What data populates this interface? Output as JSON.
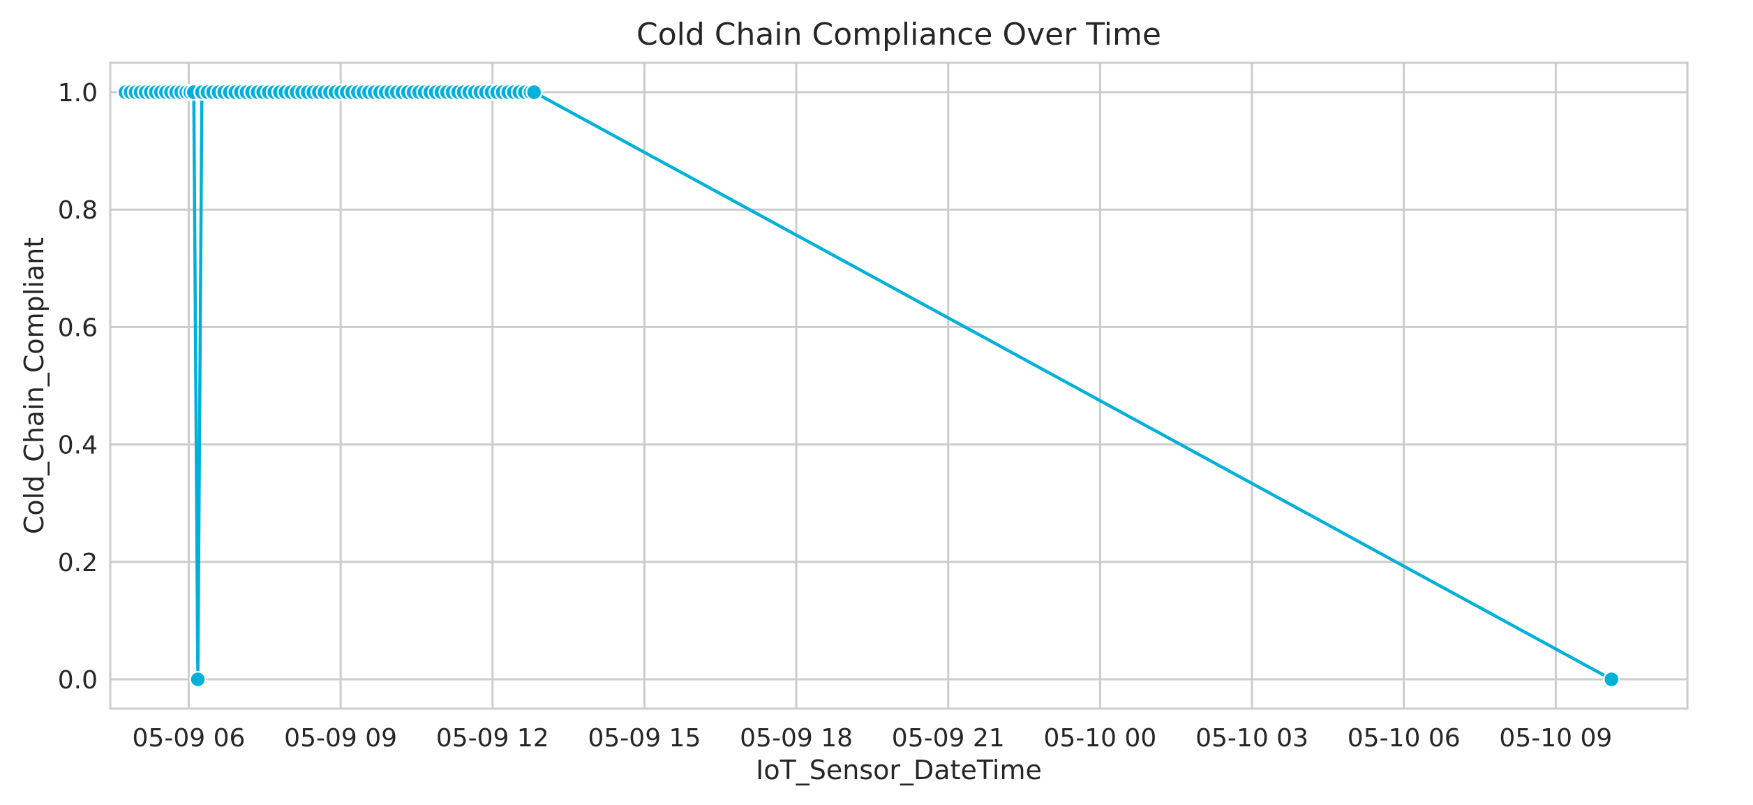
{
  "chart_data": {
    "type": "line",
    "title": "Cold Chain Compliance Over Time",
    "xlabel": "IoT_Sensor_DateTime",
    "ylabel": "Cold_Chain_Compliant",
    "x_tick_labels": [
      "05-09 06",
      "05-09 09",
      "05-09 12",
      "05-09 15",
      "05-09 18",
      "05-09 21",
      "05-10 00",
      "05-10 03",
      "05-10 06",
      "05-10 09"
    ],
    "x_tick_hours": [
      6,
      9,
      12,
      15,
      18,
      21,
      24,
      27,
      30,
      33
    ],
    "y_tick_labels": [
      "0.0",
      "0.2",
      "0.4",
      "0.6",
      "0.8",
      "1.0"
    ],
    "y_tick_values": [
      0.0,
      0.2,
      0.4,
      0.6,
      0.8,
      1.0
    ],
    "xlim_hours": [
      4.45,
      35.6
    ],
    "ylim": [
      -0.05,
      1.05
    ],
    "grid": true,
    "color": "#00b0d8",
    "series": [
      {
        "x_hours": [
          4.75,
          4.85,
          4.95,
          5.05,
          5.15,
          5.25,
          5.35,
          5.45,
          5.55,
          5.65,
          5.75,
          5.85,
          5.95,
          6.03,
          6.1,
          6.18,
          6.26,
          6.37,
          6.48,
          6.59,
          6.7,
          6.81,
          6.92,
          7.03,
          7.14,
          7.25,
          7.36,
          7.47,
          7.58,
          7.69,
          7.8,
          7.91,
          8.02,
          8.13,
          8.24,
          8.35,
          8.46,
          8.57,
          8.68,
          8.79,
          8.9,
          9.01,
          9.12,
          9.23,
          9.34,
          9.45,
          9.56,
          9.67,
          9.78,
          9.89,
          10.0,
          10.11,
          10.22,
          10.33,
          10.44,
          10.55,
          10.66,
          10.77,
          10.88,
          10.99,
          11.1,
          11.21,
          11.32,
          11.43,
          11.54,
          11.65,
          11.76,
          11.87,
          11.98,
          12.09,
          12.2,
          12.31,
          12.42,
          12.53,
          12.64,
          12.75,
          12.82,
          34.1
        ],
        "values": [
          1,
          1,
          1,
          1,
          1,
          1,
          1,
          1,
          1,
          1,
          1,
          1,
          1,
          1,
          1,
          0,
          1,
          1,
          1,
          1,
          1,
          1,
          1,
          1,
          1,
          1,
          1,
          1,
          1,
          1,
          1,
          1,
          1,
          1,
          1,
          1,
          1,
          1,
          1,
          1,
          1,
          1,
          1,
          1,
          1,
          1,
          1,
          1,
          1,
          1,
          1,
          1,
          1,
          1,
          1,
          1,
          1,
          1,
          1,
          1,
          1,
          1,
          1,
          1,
          1,
          1,
          1,
          1,
          1,
          1,
          1,
          1,
          1,
          1,
          1,
          1,
          1,
          0
        ]
      }
    ]
  }
}
